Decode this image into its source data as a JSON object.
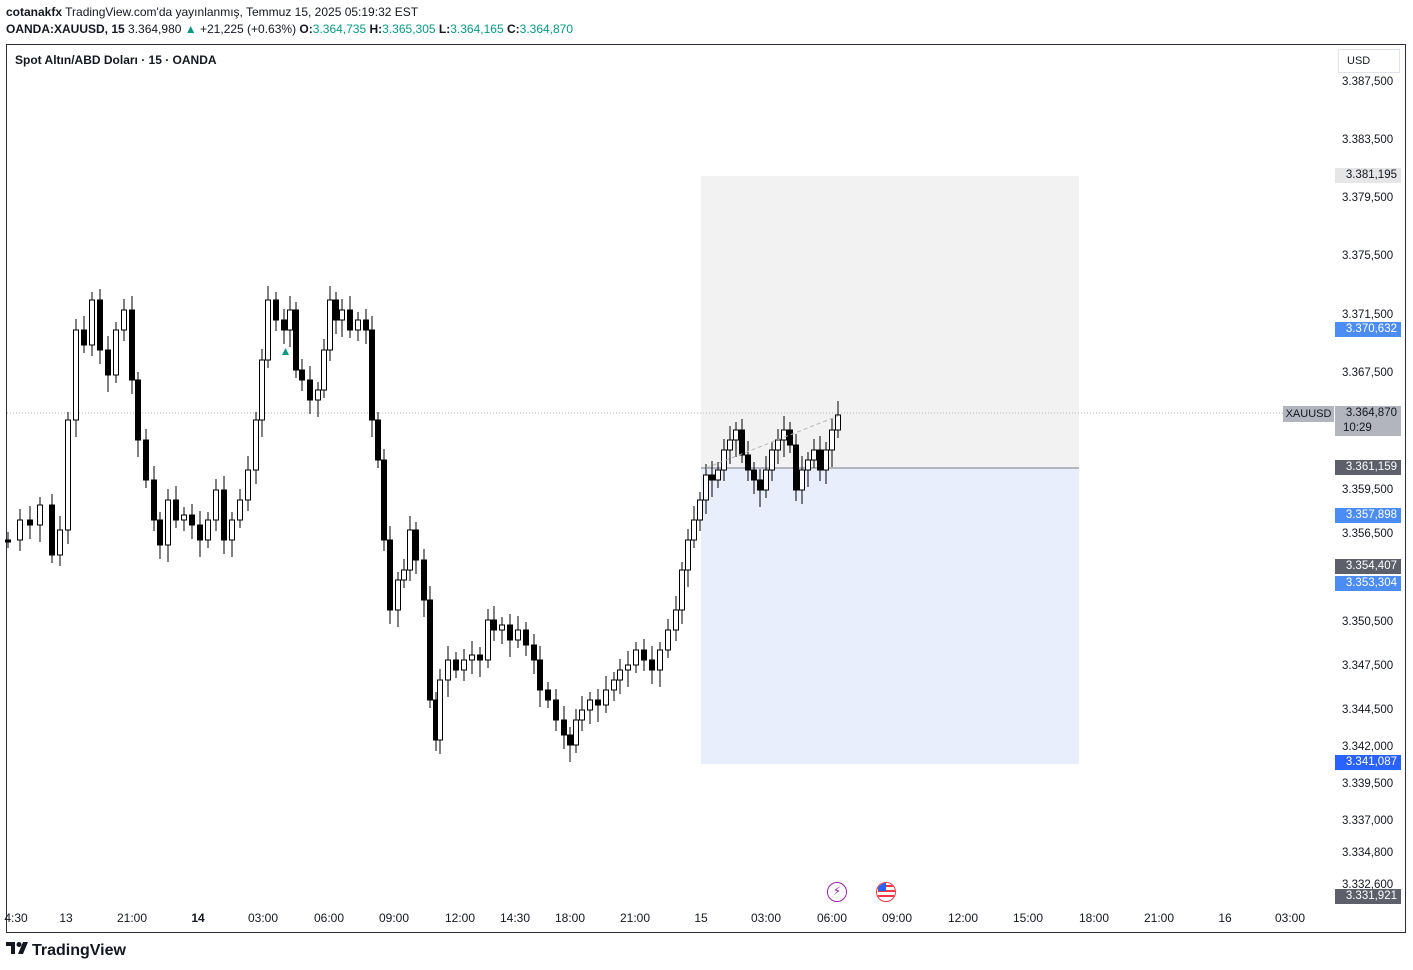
{
  "header": {
    "author": "cotanakfx",
    "published_text": "TradingView.com'da yayınlanmış, Temmuz 15, 2025 05:19:32 EST",
    "symbol_interval": "OANDA:XAUUSD, 15",
    "last_price": "3.364,980",
    "change": "+21,225 (+0.63%)",
    "open_label": "O:",
    "open": "3.364,735",
    "high_label": "H:",
    "high": "3.365,305",
    "low_label": "L:",
    "low": "3.364,165",
    "close_label": "C:",
    "close": "3.364,870"
  },
  "chart_title": "Spot Altın/ABD Doları · 15 · OANDA",
  "currency": "USD",
  "price_axis": [
    "3.387,500",
    "3.383,500",
    "3.379,500",
    "3.375,500",
    "3.371,500",
    "3.367,500",
    "3.359,500",
    "3.356,500",
    "3.350,500",
    "3.347,500",
    "3.344,500",
    "3.342,000",
    "3.339,500",
    "3.337,000",
    "3.334,800",
    "3.332,600"
  ],
  "price_tags": {
    "target_top": "3.381,195",
    "level1": "3.370,632",
    "current": "3.364,870",
    "countdown": "10:29",
    "entry": "3.361,159",
    "level2": "3.357,898",
    "level3": "3.354,407",
    "level4": "3.353,304",
    "stop": "3.341,087",
    "low": "3.331,921"
  },
  "symbol_tag": "XAUUSD",
  "time_axis": [
    {
      "label": "4:30",
      "bold": false
    },
    {
      "label": "13",
      "bold": false
    },
    {
      "label": "21:00",
      "bold": false
    },
    {
      "label": "14",
      "bold": true
    },
    {
      "label": "03:00",
      "bold": false
    },
    {
      "label": "06:00",
      "bold": false
    },
    {
      "label": "09:00",
      "bold": false
    },
    {
      "label": "12:00",
      "bold": false
    },
    {
      "label": "14:30",
      "bold": false
    },
    {
      "label": "18:00",
      "bold": false
    },
    {
      "label": "21:00",
      "bold": false
    },
    {
      "label": "15",
      "bold": false
    },
    {
      "label": "03:00",
      "bold": false
    },
    {
      "label": "06:00",
      "bold": false
    },
    {
      "label": "09:00",
      "bold": false
    },
    {
      "label": "12:00",
      "bold": false
    },
    {
      "label": "15:00",
      "bold": false
    },
    {
      "label": "18:00",
      "bold": false
    },
    {
      "label": "21:00",
      "bold": false
    },
    {
      "label": "16",
      "bold": false
    },
    {
      "label": "03:00",
      "bold": false
    }
  ],
  "events": {
    "lightning_icon": "lightning-icon",
    "us_flag_icon": "us-flag-icon"
  },
  "logo_text": "TradingView",
  "colors": {
    "up": "#ffffff",
    "down": "#000000",
    "profit_zone": "#e8eefc",
    "target_zone": "#eeeeee",
    "accent": "#2962ff",
    "green": "#089981"
  }
}
